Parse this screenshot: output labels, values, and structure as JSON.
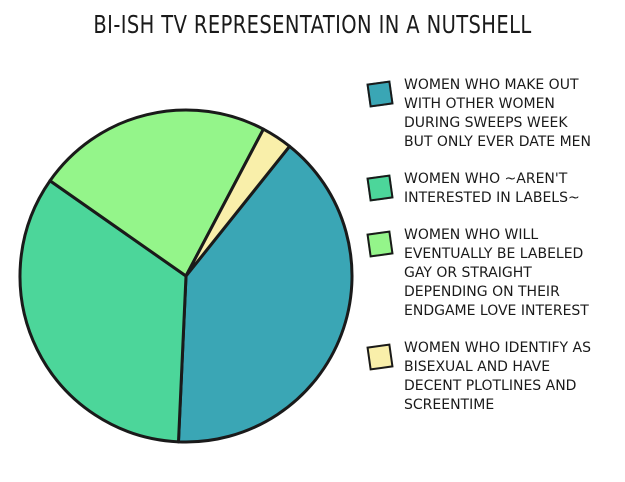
{
  "chart_data": {
    "type": "pie",
    "title": "BI-ISH TV REPRESENTATION IN A NUTSHELL",
    "categories": [
      "WOMEN WHO MAKE OUT WITH OTHER WOMEN DURING SWEEPS WEEK BUT ONLY EVER DATE MEN",
      "WOMEN WHO ~AREN'T INTERESTED IN LABELS~",
      "WOMEN WHO WILL EVENTUALLY BE LABELED GAY OR STRAIGHT DEPENDING ON THEIR ENDGAME LOVE INTEREST",
      "WOMEN WHO IDENTIFY AS BISEXUAL AND HAVE DECENT PLOTLINES AND SCREENTIME"
    ],
    "values": [
      40,
      34,
      23,
      3
    ],
    "colors": [
      "#3aa6b5",
      "#4cd69a",
      "#94f58a",
      "#f9efaa"
    ]
  }
}
